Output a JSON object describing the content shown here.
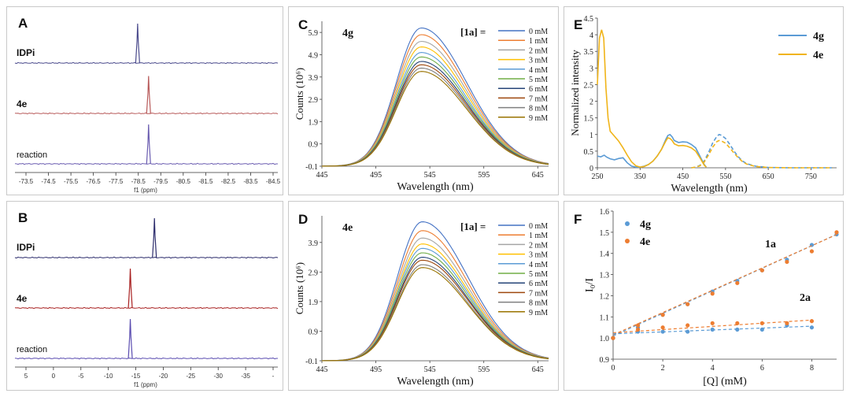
{
  "chart_data": [
    {
      "id": "A",
      "type": "line",
      "kind": "nmr-stack",
      "panel_label": "A",
      "traces": [
        {
          "name": "IDPi",
          "color": "#4a4a8c",
          "peak_ppm": -78.6,
          "peak_height": 1.0
        },
        {
          "name": "4e",
          "color": "#b85a5a",
          "peak_ppm": -79.1,
          "peak_height": 0.95
        },
        {
          "name": "reaction",
          "color": "#6a5cb0",
          "peak_ppm": -79.1,
          "peak_height": 1.0
        }
      ],
      "x_ticks": [
        "-73.5",
        "-74.5",
        "-75.5",
        "-76.5",
        "-77.5",
        "-78.5",
        "-79.5",
        "-80.5",
        "-81.5",
        "-82.5",
        "-83.5",
        "-84.5"
      ],
      "xlim": [
        -73.0,
        -85.0
      ],
      "xlabel": "f1 (ppm)"
    },
    {
      "id": "B",
      "type": "line",
      "kind": "nmr-stack",
      "panel_label": "B",
      "traces": [
        {
          "name": "IDPi",
          "color": "#2c2c6c",
          "peak_ppm": -17.0,
          "peak_height": 1.0
        },
        {
          "name": "4e",
          "color": "#a82020",
          "peak_ppm": -12.5,
          "peak_height": 1.0
        },
        {
          "name": "reaction",
          "color": "#5a4cb0",
          "peak_ppm": -12.5,
          "peak_height": 1.0
        }
      ],
      "x_ticks": [
        "5",
        "0",
        "-5",
        "-10",
        "-15",
        "-20",
        "-25",
        "-30",
        "-35",
        "-"
      ],
      "xlim": [
        9.0,
        -40.0
      ],
      "xlabel": "f1 (ppm)"
    },
    {
      "id": "C",
      "type": "line",
      "kind": "fluorescence",
      "panel_label": "C",
      "compound": "4g",
      "legend_title": "[1a] =",
      "legend": [
        "0 mM",
        "1 mM",
        "2 mM",
        "3 mM",
        "4 mM",
        "5 mM",
        "6 mM",
        "7 mM",
        "8 mM",
        "9 mM"
      ],
      "colors": [
        "#4472c4",
        "#ed7d31",
        "#a5a5a5",
        "#ffc000",
        "#5b9bd5",
        "#70ad47",
        "#264478",
        "#9e480e",
        "#7f7f7f",
        "#997300"
      ],
      "peaks": [
        6.1,
        5.8,
        5.5,
        5.25,
        5.0,
        4.8,
        4.6,
        4.45,
        4.3,
        4.15
      ],
      "peak_nm": 537,
      "xlim": [
        445,
        655
      ],
      "ylim": [
        -0.1,
        6.4
      ],
      "x_ticks": [
        445,
        495,
        545,
        595,
        645
      ],
      "y_ticks": [
        -0.1,
        0.9,
        1.9,
        2.9,
        3.9,
        4.9,
        5.9
      ],
      "xlabel": "Wavelength (nm)",
      "ylabel": "Counts (10⁶)"
    },
    {
      "id": "D",
      "type": "line",
      "kind": "fluorescence",
      "panel_label": "D",
      "compound": "4e",
      "legend_title": "[1a] =",
      "legend": [
        "0 mM",
        "1 mM",
        "2 mM",
        "3 mM",
        "4 mM",
        "5 mM",
        "6 mM",
        "7 mM",
        "8 mM",
        "9 mM"
      ],
      "colors": [
        "#4472c4",
        "#ed7d31",
        "#a5a5a5",
        "#ffc000",
        "#5b9bd5",
        "#70ad47",
        "#264478",
        "#9e480e",
        "#7f7f7f",
        "#997300"
      ],
      "peaks": [
        4.6,
        4.3,
        4.05,
        3.85,
        3.7,
        3.55,
        3.4,
        3.3,
        3.15,
        3.05
      ],
      "peak_nm": 538,
      "xlim": [
        445,
        655
      ],
      "ylim": [
        -0.1,
        4.8
      ],
      "x_ticks": [
        445,
        495,
        545,
        595,
        645
      ],
      "y_ticks": [
        -0.1,
        0.9,
        1.9,
        2.9,
        3.9
      ],
      "xlabel": "Wavelength (nm)",
      "ylabel": "Counts (10⁶)"
    },
    {
      "id": "E",
      "type": "line",
      "kind": "absorption-emission",
      "panel_label": "E",
      "legend": [
        {
          "name": "4g",
          "color": "#5b9bd5"
        },
        {
          "name": "4e",
          "color": "#f0b419"
        }
      ],
      "series": [
        {
          "name": "4g abs",
          "color": "#5b9bd5",
          "dashed": false,
          "x": [
            250,
            258,
            266,
            272,
            280,
            290,
            300,
            310,
            320,
            330,
            340,
            350,
            360,
            370,
            380,
            390,
            400,
            410,
            415,
            420,
            425,
            430,
            440,
            450,
            460,
            470,
            480,
            490,
            500,
            505
          ],
          "y": [
            0.35,
            0.33,
            0.38,
            0.32,
            0.27,
            0.24,
            0.28,
            0.3,
            0.15,
            0.05,
            0.02,
            0.02,
            0.05,
            0.1,
            0.2,
            0.35,
            0.55,
            0.85,
            0.97,
            1.0,
            0.93,
            0.82,
            0.76,
            0.78,
            0.77,
            0.7,
            0.6,
            0.35,
            0.1,
            0.02
          ]
        },
        {
          "name": "4g em",
          "color": "#5b9bd5",
          "dashed": true,
          "x": [
            470,
            480,
            490,
            500,
            510,
            520,
            530,
            535,
            540,
            550,
            560,
            570,
            580,
            590,
            600,
            620,
            650,
            700,
            750,
            800
          ],
          "y": [
            0.0,
            0.02,
            0.07,
            0.2,
            0.45,
            0.75,
            0.95,
            1.0,
            0.98,
            0.88,
            0.7,
            0.5,
            0.33,
            0.2,
            0.12,
            0.05,
            0.01,
            0.0,
            0.0,
            0.0
          ]
        },
        {
          "name": "4e abs",
          "color": "#f0b419",
          "dashed": false,
          "x": [
            250,
            255,
            260,
            265,
            270,
            275,
            280,
            290,
            300,
            310,
            320,
            330,
            340,
            350,
            360,
            370,
            380,
            390,
            400,
            410,
            415,
            420,
            425,
            430,
            440,
            450,
            460,
            470,
            480,
            490,
            500,
            505
          ],
          "y": [
            2.5,
            3.9,
            4.15,
            3.9,
            2.4,
            1.5,
            1.1,
            0.95,
            0.8,
            0.6,
            0.38,
            0.18,
            0.06,
            0.02,
            0.04,
            0.1,
            0.2,
            0.35,
            0.55,
            0.8,
            0.9,
            0.88,
            0.82,
            0.72,
            0.66,
            0.67,
            0.65,
            0.6,
            0.5,
            0.3,
            0.08,
            0.02
          ]
        },
        {
          "name": "4e em",
          "color": "#f0b419",
          "dashed": true,
          "x": [
            470,
            480,
            490,
            500,
            510,
            520,
            530,
            535,
            540,
            550,
            560,
            570,
            580,
            590,
            600,
            620,
            650,
            700,
            750,
            800
          ],
          "y": [
            0.0,
            0.02,
            0.06,
            0.17,
            0.38,
            0.62,
            0.79,
            0.82,
            0.81,
            0.74,
            0.6,
            0.44,
            0.3,
            0.18,
            0.11,
            0.04,
            0.01,
            0.0,
            0.0,
            0.0
          ]
        }
      ],
      "xlim": [
        250,
        810
      ],
      "ylim": [
        0,
        4.5
      ],
      "x_ticks": [
        250,
        350,
        450,
        550,
        650,
        750
      ],
      "y_ticks": [
        0,
        0.5,
        1,
        1.5,
        2,
        2.5,
        3,
        3.5,
        4,
        4.5
      ],
      "xlabel": "Wavelength (nm)",
      "ylabel": "Normalized intensity"
    },
    {
      "id": "F",
      "type": "scatter",
      "kind": "stern-volmer",
      "panel_label": "F",
      "legend": [
        {
          "name": "4g",
          "color": "#5b9bd5"
        },
        {
          "name": "4e",
          "color": "#ed7d31"
        }
      ],
      "annotations": [
        "1a",
        "2a"
      ],
      "series": [
        {
          "name": "4g + 1a",
          "color": "#5b9bd5",
          "x": [
            0,
            1,
            2,
            3,
            4,
            5,
            6,
            7,
            8,
            9
          ],
          "y": [
            1.0,
            1.05,
            1.11,
            1.16,
            1.22,
            1.27,
            1.32,
            1.37,
            1.44,
            1.49
          ],
          "fit": [
            1.01,
            0.0533
          ]
        },
        {
          "name": "4e + 1a",
          "color": "#ed7d31",
          "x": [
            0,
            1,
            2,
            3,
            4,
            5,
            6,
            7,
            8,
            9
          ],
          "y": [
            1.0,
            1.06,
            1.11,
            1.16,
            1.21,
            1.26,
            1.32,
            1.36,
            1.41,
            1.5
          ],
          "fit": [
            1.015,
            0.0527
          ]
        },
        {
          "name": "4g + 2a",
          "color": "#5b9bd5",
          "x": [
            0,
            1,
            2,
            3,
            4,
            5,
            6,
            7,
            8
          ],
          "y": [
            1.0,
            1.03,
            1.03,
            1.03,
            1.04,
            1.04,
            1.04,
            1.06,
            1.05
          ],
          "fit": [
            1.02,
            0.0045
          ]
        },
        {
          "name": "4e + 2a",
          "color": "#ed7d31",
          "x": [
            0,
            1,
            2,
            3,
            4,
            5,
            6,
            7,
            8
          ],
          "y": [
            1.0,
            1.04,
            1.05,
            1.06,
            1.07,
            1.07,
            1.07,
            1.07,
            1.08
          ],
          "fit": [
            1.025,
            0.0075
          ]
        }
      ],
      "xlim": [
        0,
        9
      ],
      "ylim": [
        0.9,
        1.6
      ],
      "x_ticks": [
        0,
        2,
        4,
        6,
        8
      ],
      "y_ticks": [
        0.9,
        1.0,
        1.1,
        1.2,
        1.3,
        1.4,
        1.5,
        1.6
      ],
      "xlabel": "[Q] (mM)",
      "ylabel": "I₀/I"
    }
  ]
}
